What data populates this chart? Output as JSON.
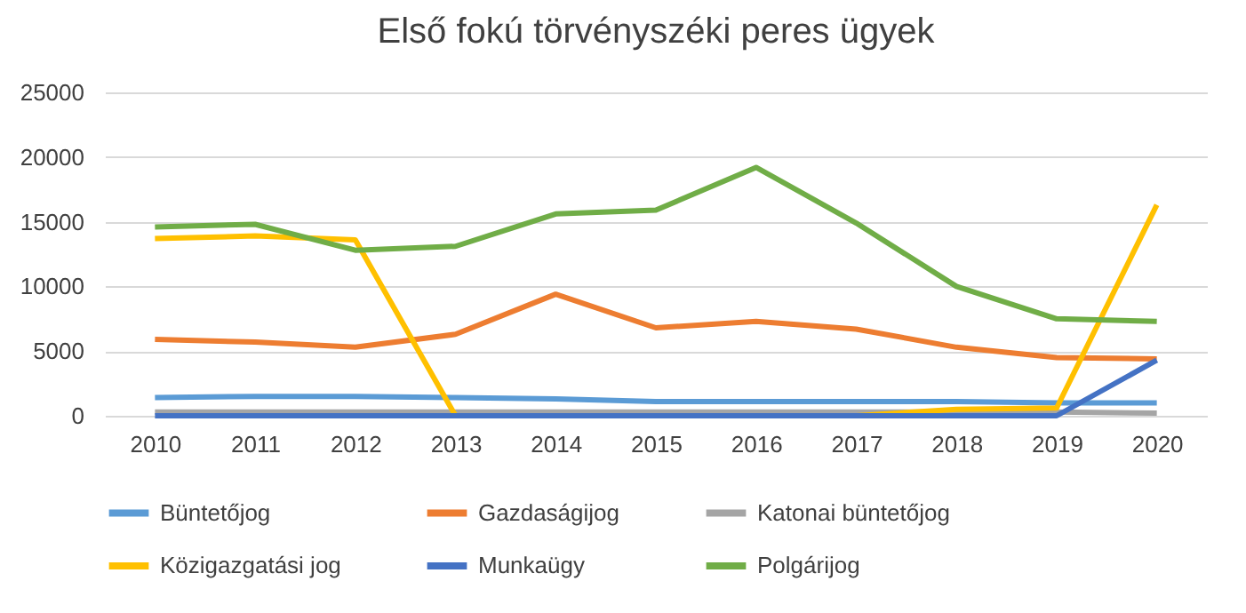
{
  "chart_data": {
    "type": "line",
    "title": "Első fokú törvényszéki peres ügyek",
    "categories": [
      "2010",
      "2011",
      "2012",
      "2013",
      "2014",
      "2015",
      "2016",
      "2017",
      "2018",
      "2019",
      "2020"
    ],
    "series": [
      {
        "name": "Büntetőjog",
        "color": "#5b9bd5",
        "values": [
          1400,
          1500,
          1500,
          1400,
          1300,
          1100,
          1100,
          1100,
          1100,
          1000,
          1000
        ]
      },
      {
        "name": "Gazdaságijog",
        "color": "#ed7d31",
        "values": [
          5900,
          5700,
          5300,
          6300,
          9400,
          6800,
          7300,
          6700,
          5300,
          4500,
          4400
        ]
      },
      {
        "name": "Katonai büntetőjog",
        "color": "#a5a5a5",
        "values": [
          300,
          300,
          300,
          300,
          300,
          300,
          300,
          300,
          300,
          300,
          200
        ]
      },
      {
        "name": "Közigazgatási jog",
        "color": "#ffc000",
        "values": [
          13700,
          13900,
          13600,
          0,
          0,
          0,
          0,
          0,
          500,
          600,
          16300
        ]
      },
      {
        "name": "Munkaügy",
        "color": "#4472c4",
        "values": [
          0,
          0,
          0,
          0,
          0,
          0,
          0,
          0,
          0,
          0,
          4300
        ]
      },
      {
        "name": "Polgárijog",
        "color": "#70ad47",
        "values": [
          14600,
          14800,
          12800,
          13100,
          15600,
          15900,
          19200,
          14900,
          10000,
          7500,
          7300
        ]
      }
    ],
    "ylim": [
      0,
      25000
    ],
    "yticks": [
      0,
      5000,
      10000,
      15000,
      20000,
      25000
    ],
    "grid": "y",
    "legend": "bottom",
    "line_style": "solid"
  }
}
